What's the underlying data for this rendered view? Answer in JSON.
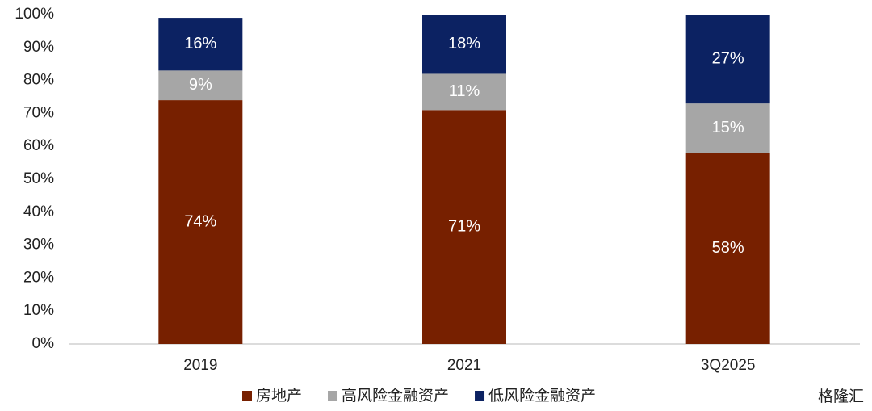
{
  "chart_data": {
    "type": "stacked_bar",
    "categories": [
      "2019",
      "2021",
      "3Q2025"
    ],
    "series": [
      {
        "name": "房地产",
        "color": "#772000",
        "values": [
          74,
          71,
          58
        ],
        "value_labels": [
          "74%",
          "71%",
          "58%"
        ]
      },
      {
        "name": "高风险金融资产",
        "color": "#a6a6a6",
        "values": [
          9,
          11,
          15
        ],
        "value_labels": [
          "9%",
          "11%",
          "15%"
        ]
      },
      {
        "name": "低风险金融资产",
        "color": "#0c2262",
        "values": [
          16,
          18,
          27
        ],
        "value_labels": [
          "16%",
          "18%",
          "27%"
        ]
      }
    ],
    "ylim": [
      0,
      100
    ],
    "yticks": [
      {
        "value": 0,
        "label": "0%"
      },
      {
        "value": 10,
        "label": "10%"
      },
      {
        "value": 20,
        "label": "20%"
      },
      {
        "value": 30,
        "label": "30%"
      },
      {
        "value": 40,
        "label": "40%"
      },
      {
        "value": 50,
        "label": "50%"
      },
      {
        "value": 60,
        "label": "60%"
      },
      {
        "value": 70,
        "label": "70%"
      },
      {
        "value": 80,
        "label": "80%"
      },
      {
        "value": 90,
        "label": "90%"
      },
      {
        "value": 100,
        "label": "100%"
      }
    ],
    "legend": "bottom",
    "watermark": "格隆汇"
  }
}
